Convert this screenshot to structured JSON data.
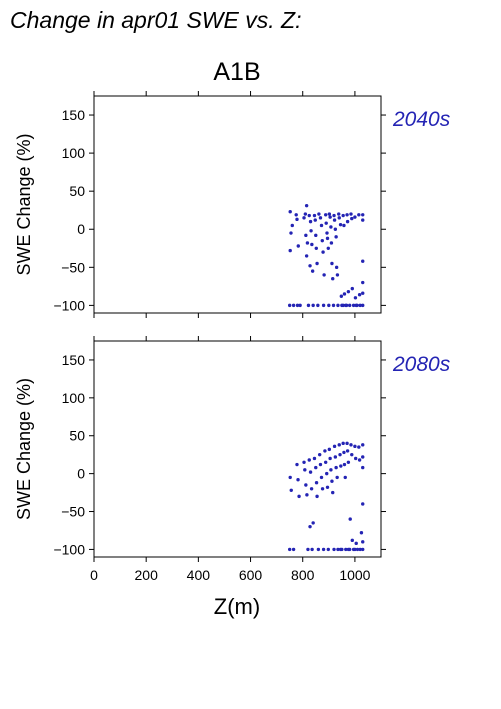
{
  "figure": {
    "title": "Change in apr01 SWE vs. Z:",
    "subtitle": "A1B",
    "xlabel": "Z(m)"
  },
  "colors": {
    "points": "#2424b4",
    "label": "#2424b4",
    "axis": "#000000"
  },
  "chart_data": [
    {
      "type": "scatter",
      "panel_label": "2040s",
      "ylabel": "SWE Change (%)",
      "xlim": [
        0,
        1100
      ],
      "ylim": [
        -110,
        175
      ],
      "xticks": [
        0,
        200,
        400,
        600,
        800,
        1000
      ],
      "yticks": [
        -100,
        -50,
        0,
        50,
        100,
        150
      ],
      "x_tick_labels_shown": false,
      "points": [
        [
          752,
          23
        ],
        [
          760,
          5
        ],
        [
          755,
          -5
        ],
        [
          752,
          -28
        ],
        [
          750,
          -100
        ],
        [
          765,
          -100
        ],
        [
          780,
          -100
        ],
        [
          790,
          -100
        ],
        [
          775,
          19
        ],
        [
          778,
          13
        ],
        [
          783,
          -22
        ],
        [
          805,
          15
        ],
        [
          810,
          20
        ],
        [
          815,
          31
        ],
        [
          812,
          -8
        ],
        [
          818,
          -18
        ],
        [
          815,
          -35
        ],
        [
          822,
          -100
        ],
        [
          825,
          18
        ],
        [
          830,
          10
        ],
        [
          832,
          -2
        ],
        [
          835,
          -20
        ],
        [
          828,
          -48
        ],
        [
          838,
          -55
        ],
        [
          840,
          -100
        ],
        [
          845,
          18
        ],
        [
          848,
          12
        ],
        [
          850,
          -8
        ],
        [
          852,
          -25
        ],
        [
          855,
          -45
        ],
        [
          858,
          -100
        ],
        [
          862,
          20
        ],
        [
          868,
          15
        ],
        [
          872,
          5
        ],
        [
          875,
          -15
        ],
        [
          878,
          -30
        ],
        [
          880,
          -100
        ],
        [
          882,
          -60
        ],
        [
          888,
          19
        ],
        [
          890,
          8
        ],
        [
          893,
          -5
        ],
        [
          895,
          -12
        ],
        [
          898,
          -25
        ],
        [
          900,
          -100
        ],
        [
          902,
          20
        ],
        [
          905,
          16
        ],
        [
          908,
          3
        ],
        [
          910,
          -18
        ],
        [
          912,
          -45
        ],
        [
          915,
          -65
        ],
        [
          918,
          -100
        ],
        [
          920,
          18
        ],
        [
          922,
          12
        ],
        [
          925,
          0
        ],
        [
          928,
          -10
        ],
        [
          930,
          -50
        ],
        [
          933,
          -60
        ],
        [
          935,
          -100
        ],
        [
          938,
          20
        ],
        [
          940,
          15
        ],
        [
          945,
          6
        ],
        [
          948,
          -88
        ],
        [
          950,
          -100
        ],
        [
          955,
          18
        ],
        [
          958,
          5
        ],
        [
          960,
          -85
        ],
        [
          965,
          -100
        ],
        [
          970,
          19
        ],
        [
          972,
          10
        ],
        [
          975,
          -82
        ],
        [
          980,
          -100
        ],
        [
          985,
          20
        ],
        [
          988,
          14
        ],
        [
          990,
          -78
        ],
        [
          995,
          -100
        ],
        [
          1000,
          16
        ],
        [
          1002,
          -90
        ],
        [
          1005,
          -100
        ],
        [
          1015,
          19
        ],
        [
          1018,
          -86
        ],
        [
          1020,
          -100
        ],
        [
          1030,
          19
        ],
        [
          1030,
          12
        ],
        [
          1030,
          -42
        ],
        [
          1030,
          -70
        ],
        [
          1030,
          -84
        ],
        [
          1030,
          -100
        ],
        [
          955,
          -100
        ],
        [
          968,
          -100
        ],
        [
          1008,
          -100
        ]
      ]
    },
    {
      "type": "scatter",
      "panel_label": "2080s",
      "ylabel": "SWE Change (%)",
      "xlim": [
        0,
        1100
      ],
      "ylim": [
        -110,
        175
      ],
      "xticks": [
        0,
        200,
        400,
        600,
        800,
        1000
      ],
      "yticks": [
        -100,
        -50,
        0,
        50,
        100,
        150
      ],
      "x_tick_labels_shown": true,
      "points": [
        [
          752,
          -5
        ],
        [
          756,
          -22
        ],
        [
          750,
          -100
        ],
        [
          765,
          -100
        ],
        [
          778,
          12
        ],
        [
          782,
          -8
        ],
        [
          786,
          -30
        ],
        [
          805,
          15
        ],
        [
          808,
          5
        ],
        [
          812,
          -15
        ],
        [
          816,
          -28
        ],
        [
          820,
          -100
        ],
        [
          825,
          18
        ],
        [
          830,
          2
        ],
        [
          834,
          -20
        ],
        [
          828,
          -70
        ],
        [
          840,
          -65
        ],
        [
          836,
          -100
        ],
        [
          845,
          20
        ],
        [
          850,
          8
        ],
        [
          853,
          -12
        ],
        [
          855,
          -30
        ],
        [
          860,
          -100
        ],
        [
          865,
          25
        ],
        [
          868,
          12
        ],
        [
          872,
          -5
        ],
        [
          876,
          -20
        ],
        [
          880,
          -100
        ],
        [
          885,
          30
        ],
        [
          888,
          15
        ],
        [
          892,
          0
        ],
        [
          895,
          -18
        ],
        [
          898,
          -100
        ],
        [
          902,
          32
        ],
        [
          905,
          20
        ],
        [
          908,
          5
        ],
        [
          912,
          -10
        ],
        [
          915,
          -25
        ],
        [
          920,
          -100
        ],
        [
          922,
          36
        ],
        [
          925,
          22
        ],
        [
          928,
          8
        ],
        [
          932,
          -5
        ],
        [
          935,
          -100
        ],
        [
          940,
          38
        ],
        [
          943,
          25
        ],
        [
          946,
          10
        ],
        [
          950,
          -100
        ],
        [
          955,
          40
        ],
        [
          958,
          28
        ],
        [
          960,
          12
        ],
        [
          963,
          -5
        ],
        [
          965,
          -100
        ],
        [
          970,
          40
        ],
        [
          972,
          30
        ],
        [
          975,
          15
        ],
        [
          980,
          -100
        ],
        [
          982,
          -60
        ],
        [
          985,
          38
        ],
        [
          988,
          25
        ],
        [
          990,
          -88
        ],
        [
          995,
          -100
        ],
        [
          1000,
          36
        ],
        [
          1003,
          20
        ],
        [
          1005,
          -92
        ],
        [
          1010,
          -100
        ],
        [
          1015,
          35
        ],
        [
          1018,
          18
        ],
        [
          1020,
          -100
        ],
        [
          1025,
          -78
        ],
        [
          1030,
          38
        ],
        [
          1030,
          22
        ],
        [
          1030,
          8
        ],
        [
          1030,
          -40
        ],
        [
          1030,
          -90
        ],
        [
          1030,
          -100
        ],
        [
          1000,
          -100
        ],
        [
          945,
          -100
        ],
        [
          975,
          -100
        ]
      ]
    }
  ]
}
